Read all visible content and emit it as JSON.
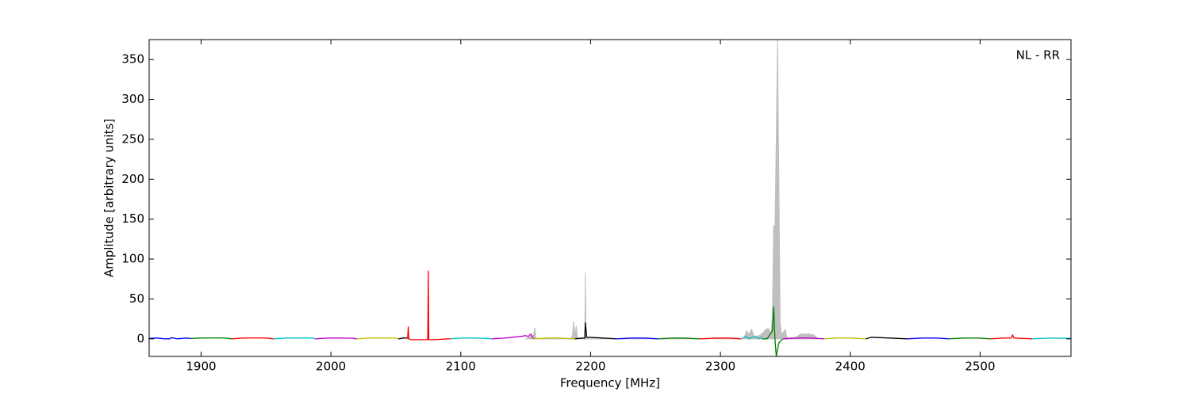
{
  "chart_data": {
    "type": "line",
    "xlabel": "Frequency [MHz]",
    "ylabel": "Amplitude [arbitrary units]",
    "annotation": "NL - RR",
    "xlim": [
      1860,
      2570
    ],
    "xticks": [
      1900,
      2000,
      2100,
      2200,
      2300,
      2400,
      2500
    ],
    "ylim": [
      -22,
      375
    ],
    "yticks": [
      0,
      50,
      100,
      150,
      200,
      250,
      300,
      350
    ],
    "fill": {
      "color": "#bfbfbf",
      "x": [
        2150,
        2155,
        2156,
        2157,
        2158,
        2184,
        2186,
        2187,
        2188,
        2189,
        2190,
        2194,
        2195.5,
        2196,
        2196.5,
        2198,
        2318,
        2320,
        2322,
        2324,
        2326,
        2330,
        2333,
        2335,
        2337,
        2339,
        2340,
        2341,
        2342,
        2343,
        2344,
        2345,
        2346,
        2347,
        2350,
        2351,
        2352,
        2358,
        2362,
        2368,
        2372,
        2375
      ],
      "values": [
        0,
        4,
        4,
        14,
        0,
        0,
        3,
        22,
        3,
        16,
        0,
        0,
        2,
        83,
        2,
        0,
        0,
        10,
        6,
        12,
        3,
        4,
        8,
        12,
        13,
        6,
        30,
        142,
        140,
        250,
        375,
        200,
        20,
        5,
        12,
        3,
        1,
        2,
        6,
        6,
        5,
        0
      ]
    },
    "series": [
      {
        "color": "#0000ff",
        "x": [
          1860,
          1866,
          1872,
          1876,
          1877,
          1882,
          1888,
          1892
        ],
        "values": [
          0.5,
          1,
          0,
          0,
          1.5,
          0,
          1,
          0.5
        ]
      },
      {
        "color": "#008000",
        "x": [
          1892,
          1900,
          1910,
          1918,
          1924
        ],
        "values": [
          0.5,
          1,
          1.2,
          1,
          0
        ]
      },
      {
        "color": "#ff0000",
        "x": [
          1924,
          1932,
          1942,
          1950,
          1956
        ],
        "values": [
          0,
          1,
          1.2,
          1,
          0
        ]
      },
      {
        "color": "#00bfbf",
        "x": [
          1956,
          1966,
          1976,
          1986,
          1988
        ],
        "values": [
          0,
          1,
          1,
          1,
          0
        ]
      },
      {
        "color": "#bf00bf",
        "x": [
          1988,
          1998,
          2008,
          2016,
          2020
        ],
        "values": [
          0,
          1,
          1,
          0.8,
          0
        ]
      },
      {
        "color": "#bfbf00",
        "x": [
          2020,
          2030,
          2040,
          2050,
          2052
        ],
        "values": [
          0,
          1,
          1,
          1,
          0
        ]
      },
      {
        "color": "#000000",
        "x": [
          2052,
          2056,
          2060
        ],
        "values": [
          0,
          1,
          1
        ]
      },
      {
        "color": "#ff0000",
        "x": [
          2059,
          2059.6,
          2060,
          2062,
          2070,
          2074.6,
          2075,
          2075.4,
          2080,
          2090,
          2092
        ],
        "values": [
          0,
          15,
          0,
          -1,
          -1,
          -1,
          85,
          -1,
          -1,
          0,
          0
        ]
      },
      {
        "color": "#00bfbf",
        "x": [
          2092,
          2100,
          2110,
          2120,
          2124
        ],
        "values": [
          0,
          1,
          1,
          0.5,
          0
        ]
      },
      {
        "color": "#bf00bf",
        "x": [
          2124,
          2134,
          2140,
          2146,
          2150,
          2152,
          2154,
          2156
        ],
        "values": [
          0,
          1,
          2,
          3,
          4,
          3,
          6,
          0
        ]
      },
      {
        "color": "#bfbf00",
        "x": [
          2156,
          2166,
          2176,
          2186,
          2188
        ],
        "values": [
          0,
          1,
          1,
          0,
          0
        ]
      },
      {
        "color": "#000000",
        "x": [
          2188,
          2194,
          2195.5,
          2196,
          2197,
          2210,
          2220
        ],
        "values": [
          0,
          1,
          1,
          20,
          2,
          1,
          0
        ]
      },
      {
        "color": "#0000ff",
        "x": [
          2220,
          2232,
          2242,
          2252
        ],
        "values": [
          0,
          1,
          1,
          0
        ]
      },
      {
        "color": "#008000",
        "x": [
          2252,
          2262,
          2272,
          2284
        ],
        "values": [
          0,
          1,
          1,
          0
        ]
      },
      {
        "color": "#ff0000",
        "x": [
          2284,
          2296,
          2306,
          2316
        ],
        "values": [
          0,
          1,
          1,
          0
        ]
      },
      {
        "color": "#00bfbf",
        "x": [
          2316,
          2320,
          2322,
          2326,
          2330,
          2332
        ],
        "values": [
          0,
          3,
          0,
          3,
          0,
          3
        ]
      },
      {
        "color": "#008000",
        "x": [
          2332,
          2336,
          2340,
          2341,
          2342,
          2343,
          2345,
          2348
        ],
        "values": [
          0,
          0,
          10,
          40,
          0,
          -22,
          -5,
          0
        ]
      },
      {
        "color": "#bf00bf",
        "x": [
          2348,
          2360,
          2370,
          2380
        ],
        "values": [
          0,
          1,
          1,
          0
        ]
      },
      {
        "color": "#bfbf00",
        "x": [
          2380,
          2390,
          2400,
          2412
        ],
        "values": [
          0,
          1,
          1,
          0
        ]
      },
      {
        "color": "#000000",
        "x": [
          2412,
          2416,
          2430,
          2444
        ],
        "values": [
          0,
          2,
          1,
          0
        ]
      },
      {
        "color": "#0000ff",
        "x": [
          2444,
          2456,
          2466,
          2476
        ],
        "values": [
          0,
          1,
          1,
          0
        ]
      },
      {
        "color": "#008000",
        "x": [
          2476,
          2488,
          2498,
          2508
        ],
        "values": [
          0,
          1,
          1,
          0
        ]
      },
      {
        "color": "#ff0000",
        "x": [
          2508,
          2518,
          2524,
          2525,
          2526,
          2540
        ],
        "values": [
          0,
          1,
          1,
          5,
          1,
          0
        ]
      },
      {
        "color": "#00bfbf",
        "x": [
          2540,
          2555,
          2570
        ],
        "values": [
          0,
          1,
          0.5
        ]
      }
    ]
  }
}
